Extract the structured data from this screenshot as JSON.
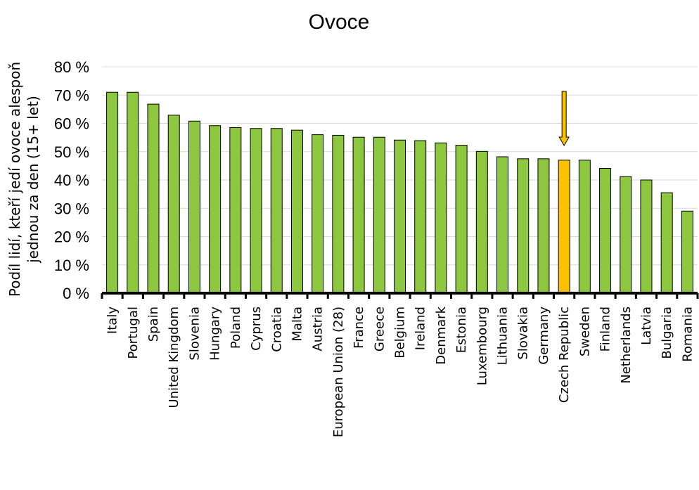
{
  "chart_data": {
    "type": "bar",
    "title": "Ovoce",
    "ylabel_lines": [
      "Podíl lidí, kteří jedí ovoce alespoň",
      "jednou za den (15+ let)"
    ],
    "xlabel": "",
    "ylim": [
      0,
      80
    ],
    "yticks": [
      0,
      10,
      20,
      30,
      40,
      50,
      60,
      70,
      80
    ],
    "ytick_labels": [
      "0 %",
      "10 %",
      "20 %",
      "30 %",
      "40 %",
      "50 %",
      "60 %",
      "70 %",
      "80 %"
    ],
    "grid": true,
    "legend": "none",
    "categories": [
      "Italy",
      "Portugal",
      "Spain",
      "United Kingdom",
      "Slovenia",
      "Hungary",
      "Poland",
      "Cyprus",
      "Croatia",
      "Malta",
      "Austria",
      "European Union (28)",
      "France",
      "Greece",
      "Belgium",
      "Ireland",
      "Denmark",
      "Estonia",
      "Luxembourg",
      "Lithuania",
      "Slovakia",
      "Germany",
      "Czech Republic",
      "Sweden",
      "Finland",
      "Netherlands",
      "Latvia",
      "Bulgaria",
      "Romania"
    ],
    "values": [
      71,
      71,
      66.8,
      62.9,
      60.8,
      59.2,
      58.5,
      58.2,
      58.2,
      57.6,
      56,
      55.8,
      55.1,
      55.1,
      54.1,
      53.9,
      53.1,
      52.3,
      50.1,
      48.2,
      47.5,
      47.5,
      47,
      47,
      44.1,
      41.2,
      40,
      35.5,
      29
    ],
    "highlight_category": "Czech Republic",
    "colors": {
      "bar": "#8DC63F",
      "highlight_bar": "#FFC000",
      "bar_outline": "#000000",
      "arrow": "#FFC000",
      "grid": "#D9D9D9",
      "axis": "#000000"
    },
    "annotations": [
      {
        "type": "arrow-down",
        "target": "Czech Republic"
      }
    ]
  }
}
